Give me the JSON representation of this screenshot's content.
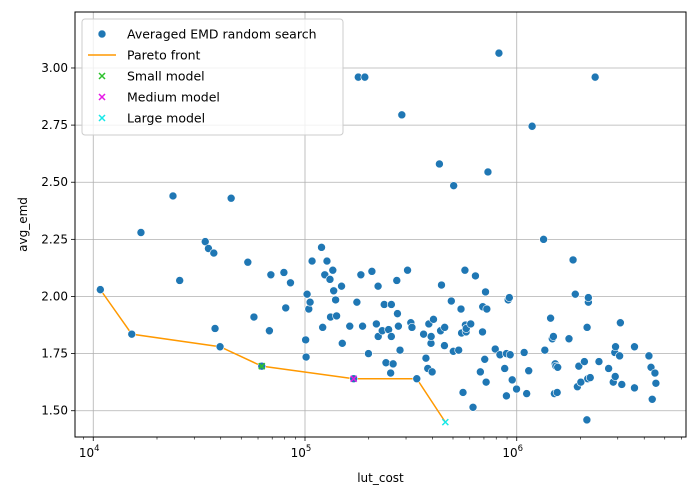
{
  "chart_data": {
    "type": "scatter",
    "xlabel": "lut_cost",
    "ylabel": "avg_emd",
    "xscale": "log",
    "xlim": [
      8200,
      6300000
    ],
    "ylim": [
      1.385,
      3.245
    ],
    "grid": true,
    "legend_position": "top-left",
    "x_ticks": [
      {
        "value": 10000,
        "label_base": "10",
        "label_exp": "4"
      },
      {
        "value": 100000,
        "label_base": "10",
        "label_exp": "5"
      },
      {
        "value": 1000000,
        "label_base": "10",
        "label_exp": "6"
      }
    ],
    "y_ticks": [
      1.5,
      1.75,
      2.0,
      2.25,
      2.5,
      2.75,
      3.0
    ],
    "y_tick_labels": [
      "1.50",
      "1.75",
      "2.00",
      "2.25",
      "2.50",
      "2.75",
      "3.00"
    ],
    "legend": [
      {
        "label": "Averaged EMD random search",
        "marker": "circle",
        "color": "#1f77b4"
      },
      {
        "label": "Pareto front",
        "marker": "line",
        "color": "#ff9900"
      },
      {
        "label": "Small model",
        "marker": "x",
        "color": "#2ec12e"
      },
      {
        "label": "Medium model",
        "marker": "x",
        "color": "#e619e6"
      },
      {
        "label": "Large model",
        "marker": "x",
        "color": "#17e8e8"
      }
    ],
    "series": [
      {
        "name": "Averaged EMD random search",
        "marker": "circle",
        "color": "#1f77b4",
        "points": [
          [
            10800,
            2.03
          ],
          [
            15200,
            1.835
          ],
          [
            16800,
            2.28
          ],
          [
            23800,
            2.44
          ],
          [
            25600,
            2.07
          ],
          [
            33800,
            2.24
          ],
          [
            35000,
            2.21
          ],
          [
            37100,
            2.19
          ],
          [
            37600,
            1.86
          ],
          [
            39700,
            1.78
          ],
          [
            44800,
            2.43
          ],
          [
            53700,
            2.15
          ],
          [
            57400,
            1.91
          ],
          [
            62500,
            1.695
          ],
          [
            67900,
            1.85
          ],
          [
            69000,
            2.095
          ],
          [
            79500,
            2.105
          ],
          [
            81100,
            1.95
          ],
          [
            85400,
            2.06
          ],
          [
            100700,
            1.81
          ],
          [
            101200,
            1.735
          ],
          [
            102300,
            2.01
          ],
          [
            104200,
            1.945
          ],
          [
            105700,
            1.975
          ],
          [
            108000,
            2.155
          ],
          [
            119700,
            2.215
          ],
          [
            121200,
            1.865
          ],
          [
            124000,
            2.095
          ],
          [
            127000,
            2.155
          ],
          [
            131200,
            2.075
          ],
          [
            132000,
            1.91
          ],
          [
            135300,
            2.115
          ],
          [
            136600,
            2.025
          ],
          [
            139500,
            1.985
          ],
          [
            141000,
            1.915
          ],
          [
            148800,
            2.045
          ],
          [
            150000,
            1.795
          ],
          [
            162700,
            1.87
          ],
          [
            169800,
            1.64
          ],
          [
            175800,
            1.975
          ],
          [
            178500,
            2.96
          ],
          [
            183600,
            2.095
          ],
          [
            191700,
            2.96
          ],
          [
            187000,
            1.87
          ],
          [
            199400,
            1.75
          ],
          [
            207000,
            2.11
          ],
          [
            217300,
            1.88
          ],
          [
            221400,
            2.045
          ],
          [
            221700,
            1.825
          ],
          [
            231600,
            1.85
          ],
          [
            236700,
            1.965
          ],
          [
            241200,
            1.71
          ],
          [
            248300,
            1.855
          ],
          [
            253800,
            1.665
          ],
          [
            255700,
            1.825
          ],
          [
            255800,
            1.965
          ],
          [
            260700,
            1.705
          ],
          [
            271300,
            2.07
          ],
          [
            273300,
            1.925
          ],
          [
            276100,
            1.87
          ],
          [
            281000,
            1.765
          ],
          [
            286600,
            2.795
          ],
          [
            305000,
            2.115
          ],
          [
            316100,
            1.885
          ],
          [
            320000,
            1.865
          ],
          [
            337200,
            1.64
          ],
          [
            363100,
            1.835
          ],
          [
            372500,
            1.73
          ],
          [
            380000,
            1.685
          ],
          [
            384500,
            1.88
          ],
          [
            393600,
            1.795
          ],
          [
            394300,
            1.825
          ],
          [
            398500,
            1.67
          ],
          [
            404400,
            1.9
          ],
          [
            431300,
            2.58
          ],
          [
            436900,
            1.85
          ],
          [
            441200,
            2.05
          ],
          [
            455600,
            1.785
          ],
          [
            456700,
            1.865
          ],
          [
            490900,
            1.98
          ],
          [
            501800,
            1.76
          ],
          [
            503700,
            2.485
          ],
          [
            531900,
            1.765
          ],
          [
            545500,
            1.945
          ],
          [
            548900,
            1.84
          ],
          [
            557500,
            1.58
          ],
          [
            569200,
            2.115
          ],
          [
            572200,
            1.875
          ],
          [
            576700,
            1.845
          ],
          [
            577500,
            1.86
          ],
          [
            606300,
            1.88
          ],
          [
            621600,
            1.515
          ],
          [
            638200,
            2.09
          ],
          [
            673300,
            1.67
          ],
          [
            689200,
            1.845
          ],
          [
            690800,
            1.955
          ],
          [
            706000,
            1.725
          ],
          [
            712100,
            2.02
          ],
          [
            716800,
            1.625
          ],
          [
            722300,
            1.945
          ],
          [
            731200,
            2.545
          ],
          [
            791500,
            1.77
          ],
          [
            823900,
            3.065
          ],
          [
            832900,
            1.745
          ],
          [
            877200,
            1.685
          ],
          [
            893900,
            1.565
          ],
          [
            893900,
            1.75
          ],
          [
            911200,
            1.985
          ],
          [
            922500,
            1.995
          ],
          [
            931000,
            1.745
          ],
          [
            952000,
            1.635
          ],
          [
            997700,
            1.595
          ],
          [
            1084000,
            1.755
          ],
          [
            1114000,
            1.575
          ],
          [
            1139000,
            1.675
          ],
          [
            1182000,
            2.745
          ],
          [
            1339000,
            2.25
          ],
          [
            1357000,
            1.765
          ],
          [
            1445000,
            1.905
          ],
          [
            1472000,
            1.815
          ],
          [
            1490000,
            1.825
          ],
          [
            1506000,
            1.575
          ],
          [
            1519000,
            1.705
          ],
          [
            1530000,
            1.695
          ],
          [
            1552000,
            1.58
          ],
          [
            1561000,
            1.69
          ],
          [
            1765000,
            1.815
          ],
          [
            1845000,
            2.16
          ],
          [
            1890000,
            2.01
          ],
          [
            1934000,
            1.605
          ],
          [
            1964000,
            1.695
          ],
          [
            2008000,
            1.625
          ],
          [
            2087000,
            1.715
          ],
          [
            2144000,
            1.46
          ],
          [
            2149000,
            1.865
          ],
          [
            2165000,
            1.64
          ],
          [
            2179000,
            1.975
          ],
          [
            2179000,
            1.995
          ],
          [
            2224000,
            1.645
          ],
          [
            2346000,
            2.96
          ],
          [
            2445000,
            1.715
          ],
          [
            2716000,
            1.685
          ],
          [
            2856000,
            1.625
          ],
          [
            2904000,
            1.755
          ],
          [
            2918000,
            1.65
          ],
          [
            2928000,
            1.78
          ],
          [
            3061000,
            1.74
          ],
          [
            3086000,
            1.885
          ],
          [
            3134000,
            1.615
          ],
          [
            3598000,
            1.6
          ],
          [
            3598000,
            1.78
          ],
          [
            4210000,
            1.74
          ],
          [
            4306000,
            1.69
          ],
          [
            4364000,
            1.55
          ],
          [
            4494000,
            1.665
          ],
          [
            4541000,
            1.62
          ]
        ]
      },
      {
        "name": "Pareto front",
        "marker": "line",
        "color": "#ff9900",
        "points": [
          [
            10800,
            2.03
          ],
          [
            15200,
            1.835
          ],
          [
            39700,
            1.78
          ],
          [
            62500,
            1.695
          ],
          [
            169800,
            1.64
          ],
          [
            337200,
            1.64
          ],
          [
            460000,
            1.45
          ]
        ]
      },
      {
        "name": "Small model",
        "marker": "x",
        "color": "#2ec12e",
        "points": [
          [
            62500,
            1.695
          ]
        ]
      },
      {
        "name": "Medium model",
        "marker": "x",
        "color": "#e619e6",
        "points": [
          [
            169800,
            1.64
          ]
        ]
      },
      {
        "name": "Large model",
        "marker": "x",
        "color": "#17e8e8",
        "points": [
          [
            460000,
            1.45
          ]
        ]
      }
    ]
  }
}
